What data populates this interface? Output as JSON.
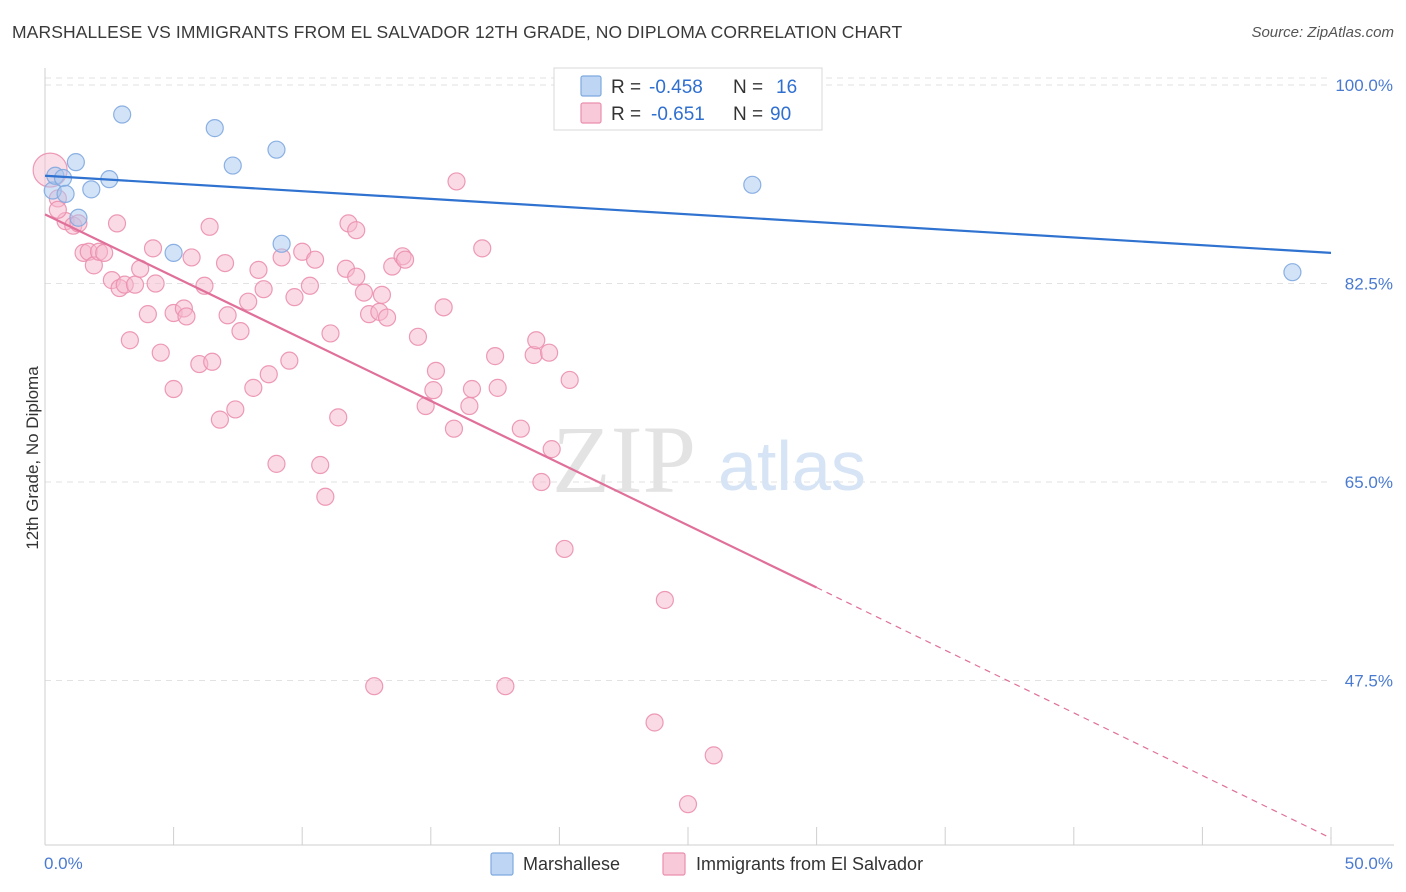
{
  "title": "MARSHALLESE VS IMMIGRANTS FROM EL SALVADOR 12TH GRADE, NO DIPLOMA CORRELATION CHART",
  "source": "Source: ZipAtlas.com",
  "watermark": {
    "zip": "ZIP",
    "atlas": "atlas"
  },
  "colors": {
    "marshallese": "#a8c8f0",
    "marshallese_stroke": "#7fa9e0",
    "marshallese_line": "#2f72d0",
    "salvador": "#f5b8cc",
    "salvador_stroke": "#eb8fae",
    "salvador_line": "#e0709a",
    "tick_label": "#4a7bd0",
    "grid": "#e2e2e2"
  },
  "legend_box": {
    "rows": [
      {
        "r_label": "R = ",
        "r_value": "-0.458",
        "n_label": "N = ",
        "n_value": "16"
      },
      {
        "r_label": "R = ",
        "r_value": "-0.651",
        "n_label": "N = ",
        "n_value": "90"
      }
    ]
  },
  "chart_data": {
    "type": "scatter",
    "title": "MARSHALLESE VS IMMIGRANTS FROM EL SALVADOR 12TH GRADE, NO DIPLOMA CORRELATION CHART",
    "xlabel": "",
    "ylabel": "12th Grade, No Diploma",
    "xlim": [
      0,
      50
    ],
    "ylim": [
      33,
      101.5
    ],
    "x_tick_labels": [
      "0.0%",
      "50.0%"
    ],
    "y_ticks": [
      47.5,
      65.0,
      82.5,
      100.0
    ],
    "y_tick_labels": [
      "47.5%",
      "65.0%",
      "82.5%",
      "100.0%"
    ],
    "grid": true,
    "legend_position": "top-center",
    "series": [
      {
        "name": "Marshallese",
        "r": -0.458,
        "n": 16,
        "trend": {
          "x0": 0,
          "y0": 92.0,
          "x1": 50,
          "y1": 85.2
        },
        "points": [
          [
            0.3,
            90.7
          ],
          [
            0.4,
            92.0
          ],
          [
            0.7,
            91.8
          ],
          [
            0.8,
            90.4
          ],
          [
            1.2,
            93.2
          ],
          [
            1.3,
            88.3
          ],
          [
            1.8,
            90.8
          ],
          [
            2.5,
            91.7
          ],
          [
            3.0,
            97.4
          ],
          [
            5.0,
            85.2
          ],
          [
            6.6,
            96.2
          ],
          [
            7.3,
            92.9
          ],
          [
            9.0,
            94.3
          ],
          [
            9.2,
            86.0
          ],
          [
            27.5,
            91.2
          ],
          [
            48.5,
            83.5
          ]
        ]
      },
      {
        "name": "Immigrants from El Salvador",
        "r": -0.651,
        "n": 90,
        "trend": {
          "x0": 0,
          "y0": 88.6,
          "x1": 30,
          "y1": 55.7,
          "dash_x1": 50,
          "dash_y1": 33.6
        },
        "points": [
          [
            0.2,
            92.5
          ],
          [
            0.5,
            90.0
          ],
          [
            0.8,
            88.0
          ],
          [
            1.1,
            87.6
          ],
          [
            1.3,
            87.8
          ],
          [
            1.5,
            85.2
          ],
          [
            1.7,
            85.3
          ],
          [
            1.9,
            84.1
          ],
          [
            2.1,
            85.3
          ],
          [
            2.3,
            85.2
          ],
          [
            2.6,
            82.8
          ],
          [
            2.8,
            87.8
          ],
          [
            2.9,
            82.1
          ],
          [
            3.1,
            82.4
          ],
          [
            3.3,
            77.5
          ],
          [
            3.5,
            82.4
          ],
          [
            3.7,
            83.8
          ],
          [
            4.0,
            79.8
          ],
          [
            4.2,
            85.6
          ],
          [
            4.3,
            82.5
          ],
          [
            4.5,
            76.4
          ],
          [
            5.0,
            79.9
          ],
          [
            5.0,
            73.2
          ],
          [
            5.4,
            80.3
          ],
          [
            5.5,
            79.6
          ],
          [
            5.7,
            84.8
          ],
          [
            6.0,
            75.4
          ],
          [
            6.2,
            82.3
          ],
          [
            6.4,
            87.5
          ],
          [
            6.5,
            75.6
          ],
          [
            6.8,
            70.5
          ],
          [
            7.0,
            84.3
          ],
          [
            7.1,
            79.7
          ],
          [
            7.4,
            71.4
          ],
          [
            7.6,
            78.3
          ],
          [
            7.9,
            80.9
          ],
          [
            8.1,
            73.3
          ],
          [
            8.3,
            83.7
          ],
          [
            8.5,
            82.0
          ],
          [
            8.7,
            74.5
          ],
          [
            9.0,
            66.6
          ],
          [
            9.2,
            84.8
          ],
          [
            9.5,
            75.7
          ],
          [
            9.7,
            81.3
          ],
          [
            10.0,
            85.3
          ],
          [
            10.3,
            82.3
          ],
          [
            10.5,
            84.6
          ],
          [
            10.7,
            66.5
          ],
          [
            10.9,
            63.7
          ],
          [
            11.1,
            78.1
          ],
          [
            11.4,
            70.7
          ],
          [
            11.7,
            83.8
          ],
          [
            11.8,
            87.8
          ],
          [
            12.1,
            87.2
          ],
          [
            12.1,
            83.1
          ],
          [
            12.4,
            81.7
          ],
          [
            12.6,
            79.8
          ],
          [
            12.8,
            47.0
          ],
          [
            13.0,
            80.0
          ],
          [
            13.1,
            81.5
          ],
          [
            13.3,
            79.5
          ],
          [
            13.5,
            84.0
          ],
          [
            13.9,
            84.9
          ],
          [
            14.0,
            84.6
          ],
          [
            14.5,
            77.8
          ],
          [
            14.8,
            71.7
          ],
          [
            15.1,
            73.1
          ],
          [
            15.2,
            74.8
          ],
          [
            15.5,
            80.4
          ],
          [
            15.9,
            69.7
          ],
          [
            16.0,
            91.5
          ],
          [
            16.5,
            71.7
          ],
          [
            16.6,
            73.2
          ],
          [
            17.0,
            85.6
          ],
          [
            17.5,
            76.1
          ],
          [
            17.6,
            73.3
          ],
          [
            17.9,
            47.0
          ],
          [
            18.5,
            69.7
          ],
          [
            19.0,
            76.2
          ],
          [
            19.1,
            77.5
          ],
          [
            19.3,
            65.0
          ],
          [
            19.6,
            76.4
          ],
          [
            19.7,
            67.9
          ],
          [
            20.2,
            59.1
          ],
          [
            20.4,
            74.0
          ],
          [
            23.7,
            43.8
          ],
          [
            24.1,
            54.6
          ],
          [
            25.0,
            36.6
          ],
          [
            26.0,
            40.9
          ],
          [
            0.5,
            89.0
          ]
        ]
      }
    ]
  }
}
